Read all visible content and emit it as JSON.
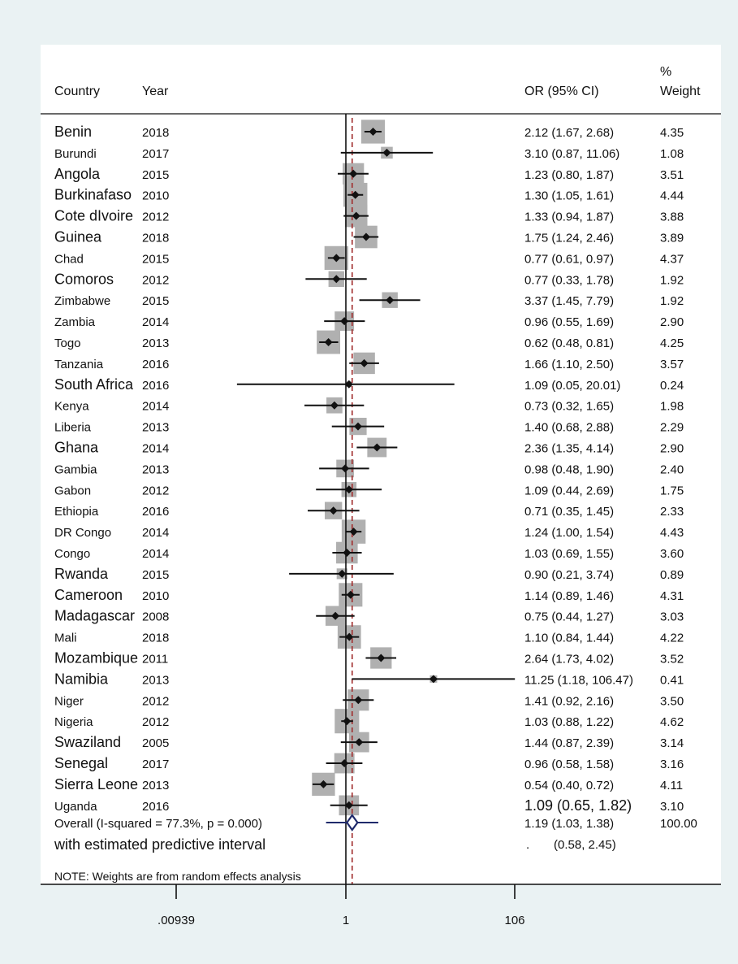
{
  "headers": {
    "country": "Country",
    "year": "Year",
    "or": "OR (95% CI)",
    "weight_top": "%",
    "weight_bottom": "Weight"
  },
  "colors": {
    "outer_bg": "#eaf2f3",
    "box": "#b0b0b0",
    "line": "#111111",
    "null_line": "#111111",
    "pooled_line": "#a02c2c",
    "diamond": "#1f2a6b"
  },
  "chart_data": {
    "type": "forest",
    "x_scale": "log",
    "x_ticks": [
      0.00939,
      1,
      106
    ],
    "x_tick_labels": [
      ".00939",
      "1",
      "106"
    ],
    "pooled_reference": 1.19,
    "studies": [
      {
        "country": "Benin",
        "year": "2018",
        "or": 2.12,
        "lo": 1.67,
        "hi": 2.68,
        "ci_text": "2.12 (1.67, 2.68)",
        "weight": 4.35,
        "weight_text": "4.35",
        "label_size": "big"
      },
      {
        "country": "Burundi",
        "year": "2017",
        "or": 3.1,
        "lo": 0.87,
        "hi": 11.06,
        "ci_text": "3.10 (0.87, 11.06)",
        "weight": 1.08,
        "weight_text": "1.08",
        "label_size": "small"
      },
      {
        "country": "Angola",
        "year": "2015",
        "or": 1.23,
        "lo": 0.8,
        "hi": 1.87,
        "ci_text": "1.23 (0.80, 1.87)",
        "weight": 3.51,
        "weight_text": "3.51",
        "label_size": "big"
      },
      {
        "country": "Burkinafaso",
        "year": "2010",
        "or": 1.3,
        "lo": 1.05,
        "hi": 1.61,
        "ci_text": "1.30 (1.05, 1.61)",
        "weight": 4.44,
        "weight_text": "4.44",
        "label_size": "big"
      },
      {
        "country": "Cote dIvoire",
        "year": "2012",
        "or": 1.33,
        "lo": 0.94,
        "hi": 1.87,
        "ci_text": "1.33 (0.94, 1.87)",
        "weight": 3.88,
        "weight_text": "3.88",
        "label_size": "big"
      },
      {
        "country": "Guinea",
        "year": "2018",
        "or": 1.75,
        "lo": 1.24,
        "hi": 2.46,
        "ci_text": "1.75 (1.24, 2.46)",
        "weight": 3.89,
        "weight_text": "3.89",
        "label_size": "big"
      },
      {
        "country": "Chad",
        "year": "2015",
        "or": 0.77,
        "lo": 0.61,
        "hi": 0.97,
        "ci_text": "0.77 (0.61, 0.97)",
        "weight": 4.37,
        "weight_text": "4.37",
        "label_size": "small"
      },
      {
        "country": "Comoros",
        "year": "2012",
        "or": 0.77,
        "lo": 0.33,
        "hi": 1.78,
        "ci_text": "0.77 (0.33, 1.78)",
        "weight": 1.92,
        "weight_text": "1.92",
        "label_size": "big"
      },
      {
        "country": "Zimbabwe",
        "year": "2015",
        "or": 3.37,
        "lo": 1.45,
        "hi": 7.79,
        "ci_text": "3.37 (1.45, 7.79)",
        "weight": 1.92,
        "weight_text": "1.92",
        "label_size": "small"
      },
      {
        "country": "Zambia",
        "year": "2014",
        "or": 0.96,
        "lo": 0.55,
        "hi": 1.69,
        "ci_text": "0.96 (0.55, 1.69)",
        "weight": 2.9,
        "weight_text": "2.90",
        "label_size": "small"
      },
      {
        "country": "Togo",
        "year": "2013",
        "or": 0.62,
        "lo": 0.48,
        "hi": 0.81,
        "ci_text": "0.62 (0.48, 0.81)",
        "weight": 4.25,
        "weight_text": "4.25",
        "label_size": "small"
      },
      {
        "country": "Tanzania",
        "year": "2016",
        "or": 1.66,
        "lo": 1.1,
        "hi": 2.5,
        "ci_text": "1.66 (1.10, 2.50)",
        "weight": 3.57,
        "weight_text": "3.57",
        "label_size": "small"
      },
      {
        "country": "South Africa",
        "year": "2016",
        "or": 1.09,
        "lo": 0.05,
        "hi": 20.01,
        "ci_text": "1.09 (0.05, 20.01)",
        "weight": 0.24,
        "weight_text": "0.24",
        "label_size": "big"
      },
      {
        "country": "Kenya",
        "year": "2014",
        "or": 0.73,
        "lo": 0.32,
        "hi": 1.65,
        "ci_text": "0.73 (0.32, 1.65)",
        "weight": 1.98,
        "weight_text": "1.98",
        "label_size": "small"
      },
      {
        "country": "Liberia",
        "year": "2013",
        "or": 1.4,
        "lo": 0.68,
        "hi": 2.88,
        "ci_text": "1.40 (0.68, 2.88)",
        "weight": 2.29,
        "weight_text": "2.29",
        "label_size": "small"
      },
      {
        "country": "Ghana",
        "year": "2014",
        "or": 2.36,
        "lo": 1.35,
        "hi": 4.14,
        "ci_text": "2.36 (1.35, 4.14)",
        "weight": 2.9,
        "weight_text": "2.90",
        "label_size": "big"
      },
      {
        "country": "Gambia",
        "year": "2013",
        "or": 0.98,
        "lo": 0.48,
        "hi": 1.9,
        "ci_text": "0.98 (0.48, 1.90)",
        "weight": 2.4,
        "weight_text": "2.40",
        "label_size": "small"
      },
      {
        "country": "Gabon",
        "year": "2012",
        "or": 1.09,
        "lo": 0.44,
        "hi": 2.69,
        "ci_text": "1.09 (0.44, 2.69)",
        "weight": 1.75,
        "weight_text": "1.75",
        "label_size": "small"
      },
      {
        "country": "Ethiopia",
        "year": "2016",
        "or": 0.71,
        "lo": 0.35,
        "hi": 1.45,
        "ci_text": "0.71 (0.35, 1.45)",
        "weight": 2.33,
        "weight_text": "2.33",
        "label_size": "small"
      },
      {
        "country": "DR Congo",
        "year": "2014",
        "or": 1.24,
        "lo": 1.0,
        "hi": 1.54,
        "ci_text": "1.24 (1.00, 1.54)",
        "weight": 4.43,
        "weight_text": "4.43",
        "label_size": "small"
      },
      {
        "country": "Congo",
        "year": "2014",
        "or": 1.03,
        "lo": 0.69,
        "hi": 1.55,
        "ci_text": "1.03 (0.69, 1.55)",
        "weight": 3.6,
        "weight_text": "3.60",
        "label_size": "small"
      },
      {
        "country": "Rwanda",
        "year": "2015",
        "or": 0.9,
        "lo": 0.21,
        "hi": 3.74,
        "ci_text": "0.90 (0.21, 3.74)",
        "weight": 0.89,
        "weight_text": "0.89",
        "label_size": "big"
      },
      {
        "country": "Cameroon",
        "year": "2010",
        "or": 1.14,
        "lo": 0.89,
        "hi": 1.46,
        "ci_text": "1.14 (0.89, 1.46)",
        "weight": 4.31,
        "weight_text": "4.31",
        "label_size": "big"
      },
      {
        "country": "Madagascar",
        "year": "2008",
        "or": 0.75,
        "lo": 0.44,
        "hi": 1.27,
        "ci_text": "0.75 (0.44, 1.27)",
        "weight": 3.03,
        "weight_text": "3.03",
        "label_size": "big"
      },
      {
        "country": "Mali",
        "year": "2018",
        "or": 1.1,
        "lo": 0.84,
        "hi": 1.44,
        "ci_text": "1.10 (0.84, 1.44)",
        "weight": 4.22,
        "weight_text": "4.22",
        "label_size": "small"
      },
      {
        "country": "Mozambique",
        "year": "2011",
        "or": 2.64,
        "lo": 1.73,
        "hi": 4.02,
        "ci_text": "2.64 (1.73, 4.02)",
        "weight": 3.52,
        "weight_text": "3.52",
        "label_size": "big"
      },
      {
        "country": "Namibia",
        "year": "2013",
        "or": 11.25,
        "lo": 1.18,
        "hi": 106.47,
        "ci_text": "11.25 (1.18, 106.47)",
        "weight": 0.41,
        "weight_text": "0.41",
        "label_size": "big"
      },
      {
        "country": "Niger",
        "year": "2012",
        "or": 1.41,
        "lo": 0.92,
        "hi": 2.16,
        "ci_text": "1.41 (0.92, 2.16)",
        "weight": 3.5,
        "weight_text": "3.50",
        "label_size": "small"
      },
      {
        "country": "Nigeria",
        "year": "2012",
        "or": 1.03,
        "lo": 0.88,
        "hi": 1.22,
        "ci_text": "1.03 (0.88, 1.22)",
        "weight": 4.62,
        "weight_text": "4.62",
        "label_size": "small"
      },
      {
        "country": "Swaziland",
        "year": "2005",
        "or": 1.44,
        "lo": 0.87,
        "hi": 2.39,
        "ci_text": "1.44 (0.87, 2.39)",
        "weight": 3.14,
        "weight_text": "3.14",
        "label_size": "big"
      },
      {
        "country": "Senegal",
        "year": "2017",
        "or": 0.96,
        "lo": 0.58,
        "hi": 1.58,
        "ci_text": "0.96 (0.58, 1.58)",
        "weight": 3.16,
        "weight_text": "3.16",
        "label_size": "big"
      },
      {
        "country": "Sierra Leone",
        "year": "2013",
        "or": 0.54,
        "lo": 0.4,
        "hi": 0.72,
        "ci_text": "0.54 (0.40, 0.72)",
        "weight": 4.11,
        "weight_text": "4.11",
        "label_size": "big"
      },
      {
        "country": "Uganda",
        "year": "2016",
        "or": 1.09,
        "lo": 0.65,
        "hi": 1.82,
        "ci_text": "1.09 (0.65, 1.82)",
        "weight": 3.1,
        "weight_text": "3.10",
        "label_size": "small",
        "ci_size": "big"
      }
    ],
    "overall": {
      "label": "Overall  (I-squared = 77.3%, p = 0.000)",
      "or": 1.19,
      "lo": 1.03,
      "hi": 1.38,
      "ci_text": "1.19 (1.03, 1.38)",
      "weight_text": "100.00"
    },
    "predictive_interval": {
      "label": "with estimated predictive interval",
      "dot": ".",
      "lo": 0.58,
      "hi": 2.45,
      "ci_text": "(0.58, 2.45)"
    },
    "note": "NOTE: Weights are from random effects analysis"
  }
}
